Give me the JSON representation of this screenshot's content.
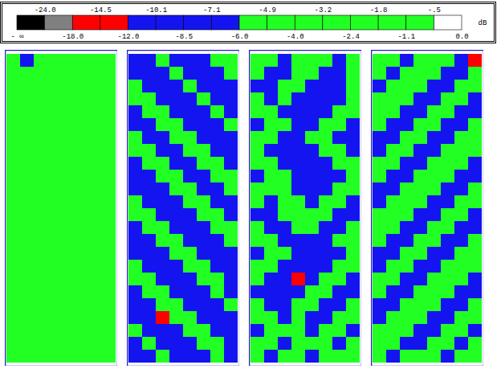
{
  "chart_data": {
    "type": "heatmap",
    "colorbar": {
      "unit": "dB",
      "boundaries": [
        {
          "value": null,
          "label": "- ∞"
        },
        {
          "value": -24,
          "label": "-24.0"
        },
        {
          "value": -18,
          "label": "-18.0"
        },
        {
          "value": -14.5,
          "label": "-14.5"
        },
        {
          "value": -12,
          "label": "-12.0"
        },
        {
          "value": -10.1,
          "label": "-10.1"
        },
        {
          "value": -8.5,
          "label": "-8.5"
        },
        {
          "value": -7.1,
          "label": "-7.1"
        },
        {
          "value": -6,
          "label": "-6.0"
        },
        {
          "value": -4.9,
          "label": "-4.9"
        },
        {
          "value": -4,
          "label": "-4.0"
        },
        {
          "value": -3.2,
          "label": "-3.2"
        },
        {
          "value": -2.4,
          "label": "-2.4"
        },
        {
          "value": -1.8,
          "label": "-1.8"
        },
        {
          "value": -1.1,
          "label": "-1.1"
        },
        {
          "value": -0.5,
          "label": "-.5"
        },
        {
          "value": 0,
          "label": "0.0"
        }
      ],
      "colors": [
        "#000000",
        "#808080",
        "#ff0000",
        "#ff0000",
        "#1414f0",
        "#1414f0",
        "#1414f0",
        "#1414f0",
        "#22ff22",
        "#22ff22",
        "#22ff22",
        "#22ff22",
        "#22ff22",
        "#22ff22",
        "#22ff22",
        "#ffffff"
      ]
    },
    "panels": [
      {
        "cells": [
          [
            -3,
            -9,
            -3,
            -3,
            -3,
            -3,
            -3,
            -3
          ],
          [
            -3,
            -3,
            -3,
            -3,
            -3,
            -3,
            -3,
            -3
          ],
          [
            -3,
            -3,
            -3,
            -3,
            -3,
            -3,
            -3,
            -3
          ],
          [
            -3,
            -3,
            -3,
            -3,
            -3,
            -3,
            -3,
            -3
          ],
          [
            -3,
            -3,
            -3,
            -3,
            -3,
            -3,
            -3,
            -3
          ],
          [
            -3,
            -3,
            -3,
            -3,
            -3,
            -3,
            -3,
            -3
          ],
          [
            -3,
            -3,
            -3,
            -3,
            -3,
            -3,
            -3,
            -3
          ],
          [
            -3,
            -3,
            -3,
            -3,
            -3,
            -3,
            -3,
            -3
          ],
          [
            -3,
            -3,
            -3,
            -3,
            -3,
            -3,
            -3,
            -3
          ],
          [
            -3,
            -3,
            -3,
            -3,
            -3,
            -3,
            -3,
            -3
          ],
          [
            -3,
            -3,
            -3,
            -3,
            -3,
            -3,
            -3,
            -3
          ],
          [
            -3,
            -3,
            -3,
            -3,
            -3,
            -3,
            -3,
            -3
          ],
          [
            -3,
            -3,
            -3,
            -3,
            -3,
            -3,
            -3,
            -3
          ],
          [
            -3,
            -3,
            -3,
            -3,
            -3,
            -3,
            -3,
            -3
          ],
          [
            -3,
            -3,
            -3,
            -3,
            -3,
            -3,
            -3,
            -3
          ],
          [
            -3,
            -3,
            -3,
            -3,
            -3,
            -3,
            -3,
            -3
          ],
          [
            -3,
            -3,
            -3,
            -3,
            -3,
            -3,
            -3,
            -3
          ],
          [
            -3,
            -3,
            -3,
            -3,
            -3,
            -3,
            -3,
            -3
          ],
          [
            -3,
            -3,
            -3,
            -3,
            -3,
            -3,
            -3,
            -3
          ],
          [
            -3,
            -3,
            -3,
            -3,
            -3,
            -3,
            -3,
            -3
          ],
          [
            -3,
            -3,
            -3,
            -3,
            -3,
            -3,
            -3,
            -3
          ],
          [
            -3,
            -3,
            -3,
            -3,
            -3,
            -3,
            -3,
            -3
          ],
          [
            -3,
            -3,
            -3,
            -3,
            -3,
            -3,
            -3,
            -3
          ],
          [
            -3,
            -3,
            -3,
            -3,
            -3,
            -3,
            -3,
            -3
          ]
        ]
      },
      {
        "cells": [
          [
            -9,
            -9,
            -3,
            -9,
            -9,
            -9,
            -3,
            -3
          ],
          [
            -9,
            -9,
            -9,
            -3,
            -9,
            -9,
            -9,
            -3
          ],
          [
            -3,
            -9,
            -9,
            -9,
            -3,
            -9,
            -9,
            -9
          ],
          [
            -3,
            -3,
            -9,
            -9,
            -9,
            -3,
            -9,
            -9
          ],
          [
            -9,
            -3,
            -3,
            -9,
            -9,
            -9,
            -3,
            -9
          ],
          [
            -9,
            -9,
            -3,
            -3,
            -9,
            -9,
            -9,
            -3
          ],
          [
            -3,
            -9,
            -9,
            -3,
            -3,
            -9,
            -9,
            -9
          ],
          [
            -3,
            -3,
            -9,
            -9,
            -3,
            -3,
            -9,
            -9
          ],
          [
            -9,
            -3,
            -3,
            -9,
            -9,
            -3,
            -3,
            -9
          ],
          [
            -9,
            -9,
            -3,
            -3,
            -9,
            -9,
            -3,
            -3
          ],
          [
            -9,
            -9,
            -9,
            -3,
            -3,
            -9,
            -9,
            -3
          ],
          [
            -3,
            -9,
            -9,
            -9,
            -3,
            -3,
            -9,
            -9
          ],
          [
            -3,
            -3,
            -9,
            -9,
            -9,
            -3,
            -3,
            -9
          ],
          [
            -9,
            -3,
            -3,
            -9,
            -9,
            -9,
            -3,
            -3
          ],
          [
            -9,
            -9,
            -3,
            -3,
            -9,
            -9,
            -9,
            -3
          ],
          [
            -9,
            -9,
            -9,
            -3,
            -3,
            -9,
            -9,
            -9
          ],
          [
            -3,
            -9,
            -9,
            -9,
            -3,
            -3,
            -9,
            -9
          ],
          [
            -3,
            -3,
            -9,
            -9,
            -9,
            -3,
            -3,
            -9
          ],
          [
            -9,
            -3,
            -3,
            -9,
            -9,
            -9,
            -3,
            -9
          ],
          [
            -9,
            -9,
            -3,
            -3,
            -9,
            -9,
            -9,
            -3
          ],
          [
            -9,
            -9,
            -15,
            -3,
            -3,
            -9,
            -9,
            -9
          ],
          [
            -3,
            -9,
            -9,
            -9,
            -3,
            -3,
            -9,
            -9
          ],
          [
            -9,
            -3,
            -9,
            -9,
            -9,
            -3,
            -3,
            -9
          ],
          [
            -9,
            -9,
            -3,
            -9,
            -9,
            -9,
            -3,
            -9
          ]
        ]
      },
      {
        "cells": [
          [
            -3,
            -3,
            -9,
            -3,
            -3,
            -3,
            -9,
            -3
          ],
          [
            -3,
            -9,
            -9,
            -3,
            -3,
            -9,
            -9,
            -3
          ],
          [
            -9,
            -9,
            -3,
            -3,
            -9,
            -9,
            -9,
            -3
          ],
          [
            -3,
            -9,
            -3,
            -9,
            -9,
            -9,
            -9,
            -3
          ],
          [
            -3,
            -3,
            -9,
            -9,
            -9,
            -9,
            -3,
            -3
          ],
          [
            -9,
            -3,
            -3,
            -9,
            -9,
            -3,
            -3,
            -9
          ],
          [
            -3,
            -3,
            -9,
            -9,
            -3,
            -3,
            -9,
            -9
          ],
          [
            -3,
            -9,
            -9,
            -9,
            -9,
            -3,
            -3,
            -9
          ],
          [
            -3,
            -3,
            -9,
            -9,
            -9,
            -9,
            -3,
            -3
          ],
          [
            -9,
            -3,
            -3,
            -9,
            -9,
            -9,
            -9,
            -3
          ],
          [
            -3,
            -3,
            -3,
            -9,
            -9,
            -9,
            -3,
            -3
          ],
          [
            -3,
            -9,
            -3,
            -3,
            -9,
            -3,
            -3,
            -9
          ],
          [
            -9,
            -9,
            -3,
            -3,
            -3,
            -3,
            -9,
            -9
          ],
          [
            -3,
            -9,
            -9,
            -3,
            -3,
            -9,
            -9,
            -3
          ],
          [
            -3,
            -3,
            -9,
            -9,
            -9,
            -9,
            -3,
            -3
          ],
          [
            -9,
            -3,
            -3,
            -9,
            -9,
            -9,
            -9,
            -3
          ],
          [
            -3,
            -3,
            -9,
            -9,
            -9,
            -9,
            -3,
            -3
          ],
          [
            -3,
            -9,
            -9,
            -15,
            -9,
            -3,
            -3,
            -9
          ],
          [
            -9,
            -9,
            -9,
            -9,
            -3,
            -3,
            -9,
            -9
          ],
          [
            -3,
            -9,
            -9,
            -3,
            -3,
            -9,
            -9,
            -3
          ],
          [
            -3,
            -3,
            -9,
            -3,
            -9,
            -9,
            -3,
            -3
          ],
          [
            -9,
            -3,
            -3,
            -3,
            -9,
            -3,
            -3,
            -9
          ],
          [
            -3,
            -3,
            -9,
            -3,
            -3,
            -3,
            -9,
            -3
          ],
          [
            -3,
            -9,
            -3,
            -3,
            -9,
            -3,
            -3,
            -3
          ]
        ]
      },
      {
        "cells": [
          [
            -3,
            -3,
            -9,
            -3,
            -3,
            -3,
            -9,
            -15
          ],
          [
            -3,
            -9,
            -3,
            -3,
            -3,
            -9,
            -9,
            -3
          ],
          [
            -9,
            -3,
            -3,
            -3,
            -9,
            -9,
            -3,
            -3
          ],
          [
            -3,
            -3,
            -3,
            -9,
            -9,
            -3,
            -3,
            -9
          ],
          [
            -3,
            -3,
            -9,
            -9,
            -3,
            -3,
            -9,
            -9
          ],
          [
            -3,
            -9,
            -9,
            -3,
            -3,
            -9,
            -9,
            -3
          ],
          [
            -9,
            -9,
            -3,
            -3,
            -9,
            -9,
            -3,
            -3
          ],
          [
            -9,
            -3,
            -3,
            -9,
            -9,
            -3,
            -3,
            -3
          ],
          [
            -3,
            -3,
            -9,
            -9,
            -3,
            -3,
            -3,
            -9
          ],
          [
            -3,
            -9,
            -9,
            -3,
            -3,
            -3,
            -9,
            -9
          ],
          [
            -9,
            -9,
            -3,
            -3,
            -3,
            -9,
            -9,
            -3
          ],
          [
            -9,
            -3,
            -3,
            -3,
            -9,
            -9,
            -3,
            -3
          ],
          [
            -3,
            -3,
            -3,
            -9,
            -9,
            -3,
            -3,
            -9
          ],
          [
            -3,
            -3,
            -9,
            -9,
            -3,
            -3,
            -9,
            -9
          ],
          [
            -3,
            -9,
            -9,
            -3,
            -3,
            -9,
            -9,
            -3
          ],
          [
            -9,
            -9,
            -3,
            -3,
            -9,
            -9,
            -3,
            -3
          ],
          [
            -9,
            -3,
            -3,
            -9,
            -9,
            -3,
            -3,
            -3
          ],
          [
            -3,
            -3,
            -9,
            -9,
            -3,
            -3,
            -3,
            -9
          ],
          [
            -3,
            -9,
            -9,
            -3,
            -3,
            -3,
            -9,
            -9
          ],
          [
            -9,
            -9,
            -3,
            -3,
            -3,
            -9,
            -9,
            -3
          ],
          [
            -9,
            -3,
            -3,
            -3,
            -9,
            -9,
            -3,
            -3
          ],
          [
            -3,
            -3,
            -3,
            -9,
            -9,
            -3,
            -3,
            -9
          ],
          [
            -3,
            -3,
            -9,
            -9,
            -3,
            -3,
            -9,
            -3
          ],
          [
            -3,
            -9,
            -3,
            -3,
            -3,
            -9,
            -3,
            -3
          ]
        ]
      }
    ]
  }
}
